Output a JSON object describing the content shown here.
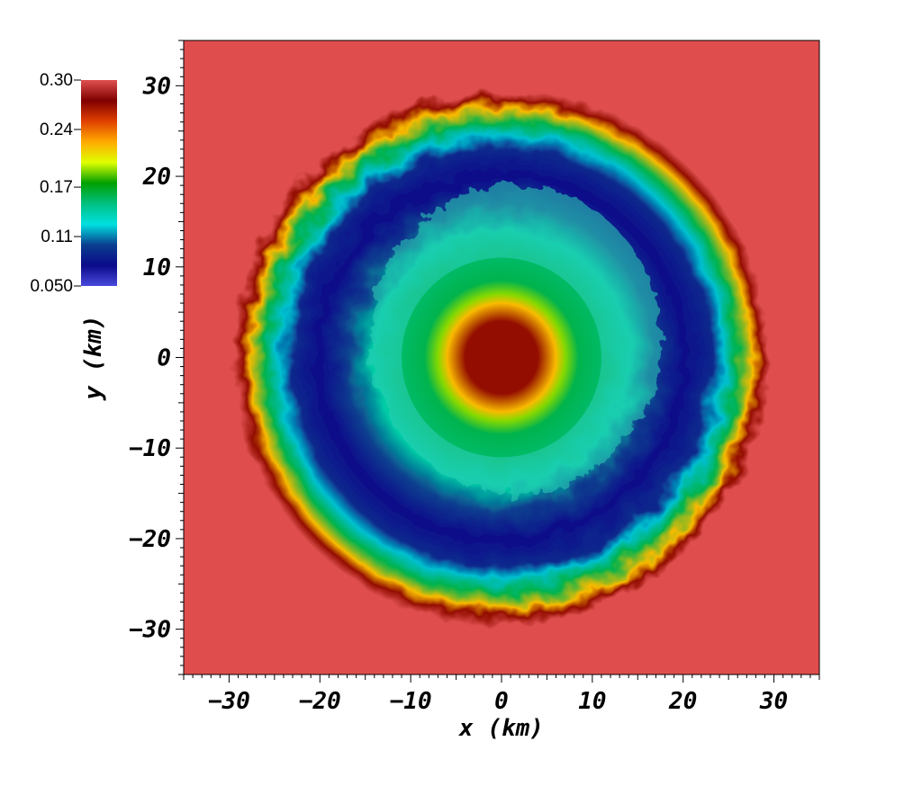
{
  "chart_data": {
    "type": "heatmap",
    "title": "",
    "xlabel": "x (km)",
    "ylabel": "y (km)",
    "xlim": [
      -35,
      35
    ],
    "ylim": [
      -35,
      35
    ],
    "xticks": [
      -30,
      -20,
      -10,
      0,
      10,
      20,
      30
    ],
    "yticks": [
      -30,
      -20,
      -10,
      0,
      10,
      20,
      30
    ],
    "xtick_labels": [
      "−30",
      "−20",
      "−10",
      "0",
      "10",
      "20",
      "30"
    ],
    "ytick_labels": [
      "−30",
      "−20",
      "−10",
      "0",
      "10",
      "20",
      "30"
    ],
    "grid": false,
    "colorbar": {
      "placement": "top-left",
      "range": [
        0.05,
        0.3
      ],
      "tick_values": [
        0.3,
        0.24,
        0.17,
        0.11,
        0.05
      ],
      "tick_labels": [
        "0.30",
        "0.24",
        "0.17",
        "0.11",
        "0.050"
      ],
      "colors": [
        "#4a4adc",
        "#0a0a8a",
        "#0a3f8f",
        "#00e0e0",
        "#00c080",
        "#00a000",
        "#e0ff00",
        "#ffaa00",
        "#e04000",
        "#800000",
        "#e05050"
      ]
    },
    "field": {
      "background_value": 0.3,
      "background_color": "#e04d4d",
      "radial_profile": [
        {
          "r": 0,
          "value": 0.27
        },
        {
          "r": 4,
          "value": 0.27
        },
        {
          "r": 6,
          "value": 0.22
        },
        {
          "r": 7,
          "value": 0.19
        },
        {
          "r": 8.5,
          "value": 0.16
        },
        {
          "r": 11,
          "value": 0.155
        },
        {
          "r": 14,
          "value": 0.14
        },
        {
          "r": 17,
          "value": 0.1
        },
        {
          "r": 20,
          "value": 0.075
        },
        {
          "r": 23,
          "value": 0.09
        },
        {
          "r": 24.5,
          "value": 0.12
        },
        {
          "r": 26,
          "value": 0.16
        },
        {
          "r": 27.5,
          "value": 0.22
        },
        {
          "r": 28.5,
          "value": 0.27
        },
        {
          "r": 29.5,
          "value": 0.3
        }
      ]
    }
  }
}
